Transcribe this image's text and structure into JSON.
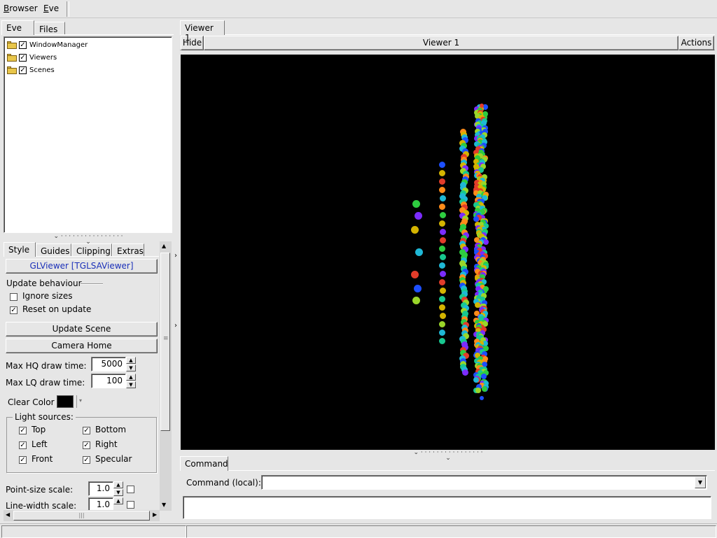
{
  "menubar": {
    "items": [
      {
        "u": "B",
        "rest": "rowser"
      },
      {
        "u": "E",
        "rest": "ve"
      }
    ]
  },
  "left_tabs": [
    "Eve",
    "Files"
  ],
  "tree": [
    {
      "label": "WindowManager",
      "checked": true
    },
    {
      "label": "Viewers",
      "checked": true
    },
    {
      "label": "Scenes",
      "checked": true
    }
  ],
  "editor_tabs": [
    "Style",
    "Guides",
    "Clipping",
    "Extras"
  ],
  "editor": {
    "object_button": "GLViewer [TGLSAViewer]",
    "update_behaviour": "Update behaviour",
    "ignore_sizes": "Ignore sizes",
    "reset_on_update": "Reset on update",
    "update_scene": "Update Scene",
    "camera_home": "Camera Home",
    "max_hq_label": "Max HQ draw time:",
    "max_hq_value": "5000",
    "max_lq_label": "Max LQ draw time:",
    "max_lq_value": "100",
    "clear_color_label": "Clear Color",
    "clear_color": "#000000",
    "light_sources": "Light sources:",
    "lights": {
      "top": "Top",
      "bottom": "Bottom",
      "left": "Left",
      "right": "Right",
      "front": "Front",
      "specular": "Specular"
    },
    "point_size_label": "Point-size scale:",
    "point_size_value": "1.0",
    "line_width_label": "Line-width scale:",
    "line_width_value": "1.0",
    "hscroll_grip": "|||"
  },
  "viewer": {
    "tab": "Viewer 1",
    "hide_button": "Hide",
    "title": "Viewer 1",
    "actions_button": "Actions",
    "background": "#000000"
  },
  "command": {
    "tab": "Command",
    "label": "Command (local):",
    "value": ""
  },
  "splitter_glyphs": {
    "arrow_down": "⌄",
    "arrow_right": "›"
  }
}
